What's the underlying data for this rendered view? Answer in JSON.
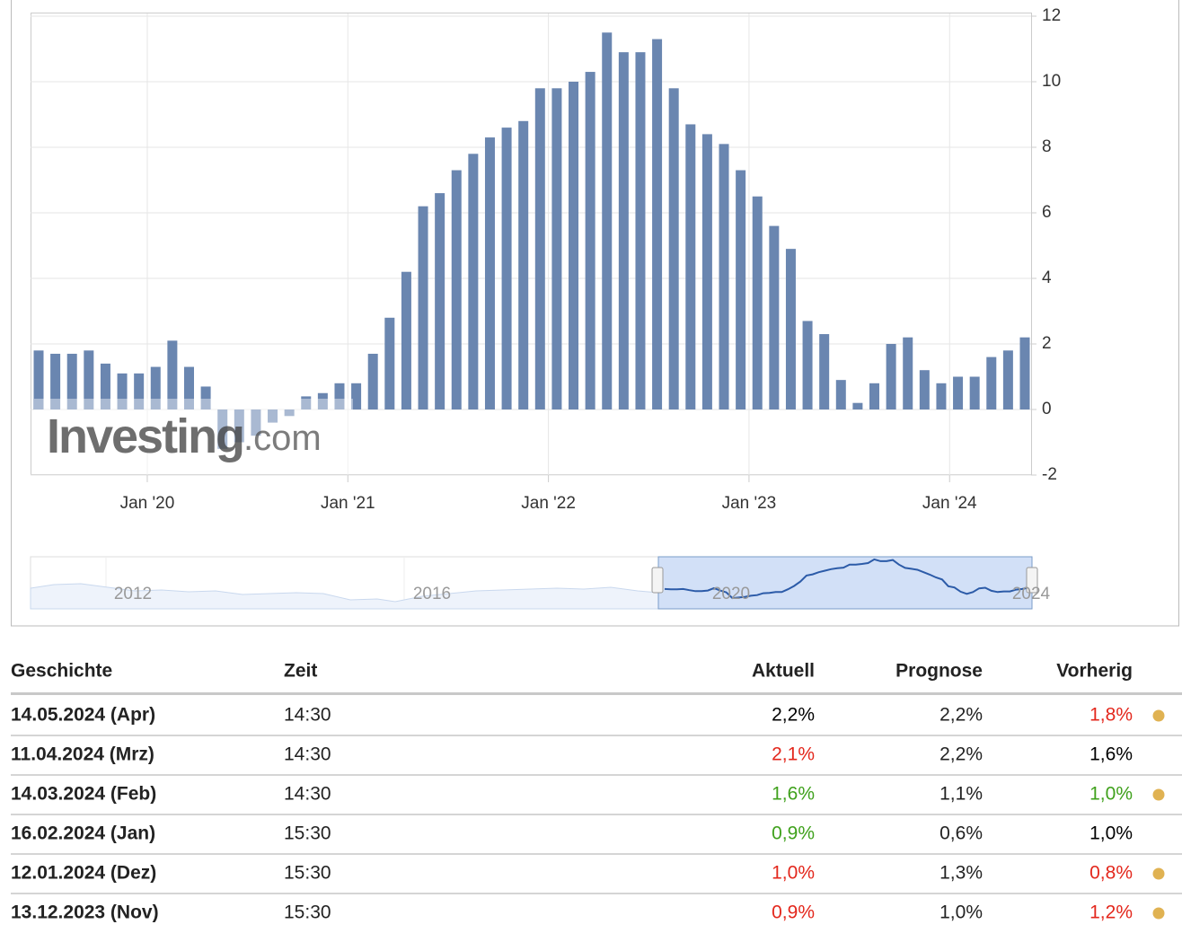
{
  "chart_data": {
    "type": "bar",
    "categories": [
      null,
      null,
      null,
      null,
      null,
      null,
      null,
      "Jan '20",
      null,
      null,
      null,
      null,
      null,
      null,
      null,
      null,
      null,
      null,
      null,
      "Jan '21",
      null,
      null,
      null,
      null,
      null,
      null,
      null,
      null,
      null,
      null,
      null,
      "Jan '22",
      null,
      null,
      null,
      null,
      null,
      null,
      null,
      null,
      null,
      null,
      null,
      "Jan '23",
      null,
      null,
      null,
      null,
      null,
      null,
      null,
      null,
      null,
      null,
      null,
      "Jan '24",
      null,
      null,
      null,
      null
    ],
    "values": [
      1.8,
      1.7,
      1.7,
      1.8,
      1.4,
      1.1,
      1.1,
      1.3,
      2.1,
      1.3,
      0.7,
      -1.2,
      -1.0,
      -0.8,
      -0.4,
      -0.2,
      0.4,
      0.5,
      0.8,
      0.8,
      1.7,
      2.8,
      4.2,
      6.2,
      6.6,
      7.3,
      7.8,
      8.3,
      8.6,
      8.8,
      9.8,
      9.8,
      10.0,
      10.3,
      11.5,
      10.9,
      10.9,
      11.3,
      9.8,
      8.7,
      8.4,
      8.1,
      7.3,
      6.5,
      5.6,
      4.9,
      2.7,
      2.3,
      0.9,
      0.2,
      0.8,
      2.0,
      2.2,
      1.2,
      0.8,
      1.0,
      1.0,
      1.6,
      1.8,
      2.2
    ],
    "color": "#6a86b0",
    "ylim": [
      -2,
      12
    ],
    "yticks": [
      -2,
      0,
      2,
      4,
      6,
      8,
      10,
      12
    ],
    "grid": true,
    "logo": "Investing",
    "logo_suffix": ".com",
    "navigator_labels": [
      "2012",
      "2016",
      "2020",
      "2024"
    ]
  },
  "table": {
    "headers": [
      "Geschichte",
      "Zeit",
      "Aktuell",
      "Prognose",
      "Vorherig"
    ],
    "rows": [
      {
        "date": "14.05.2024 (Apr)",
        "time": "14:30",
        "actual": "2,2%",
        "actual_color": "#000000",
        "forecast": "2,2%",
        "previous": "1,8%",
        "previous_color": "#e3271c",
        "revised": true
      },
      {
        "date": "11.04.2024 (Mrz)",
        "time": "14:30",
        "actual": "2,1%",
        "actual_color": "#e3271c",
        "forecast": "2,2%",
        "previous": "1,6%",
        "previous_color": "#000000",
        "revised": false
      },
      {
        "date": "14.03.2024 (Feb)",
        "time": "14:30",
        "actual": "1,6%",
        "actual_color": "#3fa11c",
        "forecast": "1,1%",
        "previous": "1,0%",
        "previous_color": "#3fa11c",
        "revised": true
      },
      {
        "date": "16.02.2024 (Jan)",
        "time": "15:30",
        "actual": "0,9%",
        "actual_color": "#3fa11c",
        "forecast": "0,6%",
        "previous": "1,0%",
        "previous_color": "#000000",
        "revised": false
      },
      {
        "date": "12.01.2024 (Dez)",
        "time": "15:30",
        "actual": "1,0%",
        "actual_color": "#e3271c",
        "forecast": "1,3%",
        "previous": "0,8%",
        "previous_color": "#e3271c",
        "revised": true
      },
      {
        "date": "13.12.2023 (Nov)",
        "time": "15:30",
        "actual": "0,9%",
        "actual_color": "#e3271c",
        "forecast": "1,0%",
        "previous": "1,2%",
        "previous_color": "#e3271c",
        "revised": true
      }
    ]
  }
}
